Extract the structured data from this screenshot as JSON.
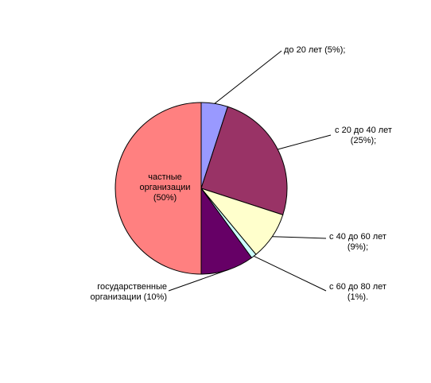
{
  "chart_data": {
    "type": "pie",
    "categories": [
      "до 20 лет (5%);",
      "с 20 до 40 лет (25%);",
      "с 40 до 60 лет (9%);",
      "с 60 до 80 лет (1%).",
      "государственные организации (10%)",
      "частные организации (50%)"
    ],
    "values": [
      5,
      25,
      9,
      1,
      10,
      50
    ],
    "colors": [
      "#9999ff",
      "#993366",
      "#ffffcc",
      "#ccffff",
      "#660066",
      "#ff8080"
    ]
  }
}
